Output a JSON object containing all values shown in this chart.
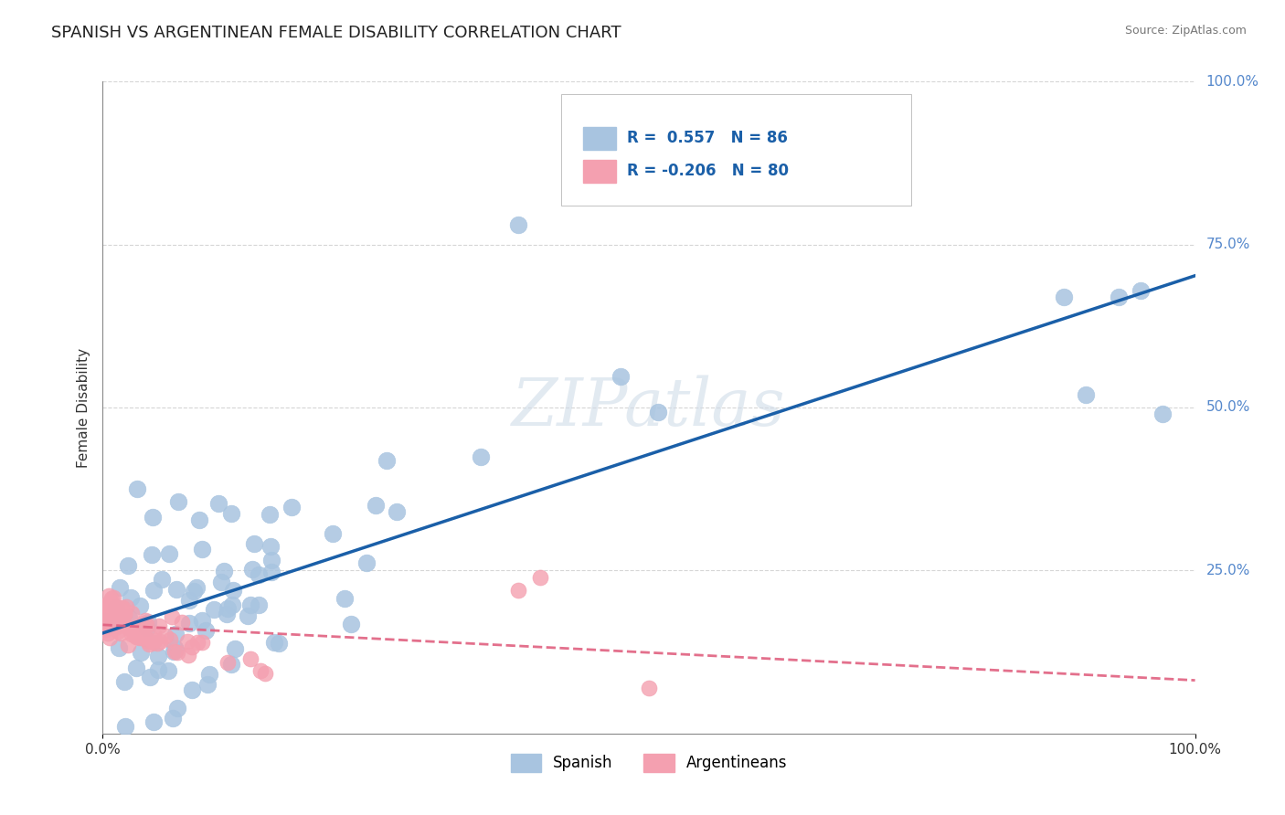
{
  "title": "SPANISH VS ARGENTINEAN FEMALE DISABILITY CORRELATION CHART",
  "source": "Source: ZipAtlas.com",
  "ylabel": "Female Disability",
  "xlim": [
    0.0,
    1.0
  ],
  "ylim": [
    0.0,
    1.0
  ],
  "spanish_R": 0.557,
  "spanish_N": 86,
  "argentinean_R": -0.206,
  "argentinean_N": 80,
  "spanish_color": "#a8c4e0",
  "spanish_line_color": "#1a5fa8",
  "argentinean_color": "#f4a0b0",
  "argentinean_line_color": "#e06080",
  "background_color": "#ffffff",
  "grid_color": "#cccccc",
  "legend_R_color": "#1a5fa8",
  "watermark_color": "#d0dce8"
}
